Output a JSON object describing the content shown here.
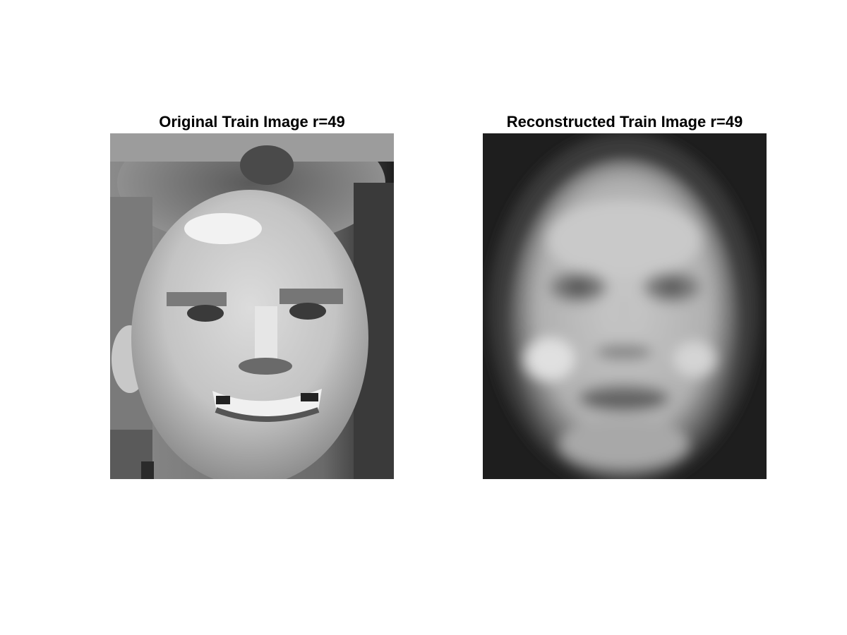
{
  "panels": [
    {
      "title": "Original Train Image r=49"
    },
    {
      "title": "Reconstructed Train Image r=49"
    }
  ],
  "images": [
    {
      "description_icon": "face-photo-icon",
      "style": "pixelated-grayscale"
    },
    {
      "description_icon": "face-photo-icon",
      "style": "blurred-grayscale"
    }
  ],
  "colors": {
    "background": "#ffffff",
    "title_text": "#000000"
  }
}
